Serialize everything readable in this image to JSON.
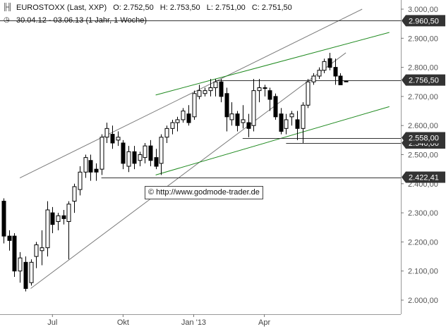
{
  "header": {
    "instrument": "EUROSTOXX (Last, XXP)",
    "open": "O: 2.752,50",
    "high": "H: 2.753,50",
    "low": "L: 2.751,00",
    "close": "C: 2.751,50",
    "period": "30.04.12 - 03.06.13 (1 Jahr, 1 Woche)"
  },
  "icons": {
    "bars": "bar-chart-icon",
    "period": "clock-icon"
  },
  "watermark": "© http://www.godmode-trader.de",
  "colors": {
    "background": "#ffffff",
    "candle": "#000000",
    "channel_lines": "#7a7a7a",
    "trend_channel": "#1f8a1f",
    "horizontal_lines": "#333333",
    "price_label_bg": "#333333",
    "price_label_text": "#ffffff"
  },
  "chart_data": {
    "type": "candlestick",
    "period": "weekly",
    "ylim": [
      1970,
      3020
    ],
    "ytick_labels": [
      "2.000,00",
      "2.100,00",
      "2.200,00",
      "2.300,00",
      "2.400,00",
      "2.500,00",
      "2.600,00",
      "2.700,00",
      "2.800,00",
      "2.900,00",
      "3.000,00"
    ],
    "yticks": [
      2000,
      2100,
      2200,
      2300,
      2400,
      2500,
      2600,
      2700,
      2800,
      2900,
      3000
    ],
    "xtick_labels": [
      {
        "label": "Jul",
        "week": 9
      },
      {
        "label": "Okt",
        "week": 22
      },
      {
        "label": "Jan '13",
        "week": 35
      },
      {
        "label": "Apr",
        "week": 48
      }
    ],
    "candles": [
      {
        "o": 2340,
        "h": 2350,
        "l": 2195,
        "c": 2220
      },
      {
        "o": 2220,
        "h": 2240,
        "l": 2170,
        "c": 2205
      },
      {
        "o": 2220,
        "h": 2230,
        "l": 2080,
        "c": 2100
      },
      {
        "o": 2100,
        "h": 2165,
        "l": 2060,
        "c": 2145
      },
      {
        "o": 2130,
        "h": 2150,
        "l": 2030,
        "c": 2040
      },
      {
        "o": 2060,
        "h": 2140,
        "l": 2050,
        "c": 2130
      },
      {
        "o": 2150,
        "h": 2200,
        "l": 2110,
        "c": 2190
      },
      {
        "o": 2170,
        "h": 2240,
        "l": 2120,
        "c": 2180
      },
      {
        "o": 2180,
        "h": 2340,
        "l": 2150,
        "c": 2310
      },
      {
        "o": 2300,
        "h": 2320,
        "l": 2230,
        "c": 2260
      },
      {
        "o": 2270,
        "h": 2300,
        "l": 2240,
        "c": 2290
      },
      {
        "o": 2290,
        "h": 2310,
        "l": 2260,
        "c": 2280
      },
      {
        "o": 2270,
        "h": 2340,
        "l": 2140,
        "c": 2330
      },
      {
        "o": 2340,
        "h": 2400,
        "l": 2300,
        "c": 2390
      },
      {
        "o": 2380,
        "h": 2460,
        "l": 2360,
        "c": 2440
      },
      {
        "o": 2440,
        "h": 2500,
        "l": 2420,
        "c": 2490
      },
      {
        "o": 2480,
        "h": 2500,
        "l": 2410,
        "c": 2440
      },
      {
        "o": 2450,
        "h": 2470,
        "l": 2410,
        "c": 2440
      },
      {
        "o": 2450,
        "h": 2570,
        "l": 2430,
        "c": 2560
      },
      {
        "o": 2560,
        "h": 2610,
        "l": 2540,
        "c": 2590
      },
      {
        "o": 2570,
        "h": 2600,
        "l": 2520,
        "c": 2540
      },
      {
        "o": 2550,
        "h": 2580,
        "l": 2530,
        "c": 2560
      },
      {
        "o": 2540,
        "h": 2550,
        "l": 2450,
        "c": 2470
      },
      {
        "o": 2460,
        "h": 2530,
        "l": 2440,
        "c": 2510
      },
      {
        "o": 2510,
        "h": 2530,
        "l": 2450,
        "c": 2470
      },
      {
        "o": 2480,
        "h": 2510,
        "l": 2460,
        "c": 2500
      },
      {
        "o": 2490,
        "h": 2540,
        "l": 2470,
        "c": 2530
      },
      {
        "o": 2530,
        "h": 2550,
        "l": 2460,
        "c": 2480
      },
      {
        "o": 2490,
        "h": 2520,
        "l": 2450,
        "c": 2460
      },
      {
        "o": 2470,
        "h": 2570,
        "l": 2430,
        "c": 2560
      },
      {
        "o": 2560,
        "h": 2600,
        "l": 2540,
        "c": 2590
      },
      {
        "o": 2590,
        "h": 2620,
        "l": 2570,
        "c": 2610
      },
      {
        "o": 2610,
        "h": 2630,
        "l": 2580,
        "c": 2620
      },
      {
        "o": 2620,
        "h": 2660,
        "l": 2610,
        "c": 2650
      },
      {
        "o": 2640,
        "h": 2670,
        "l": 2600,
        "c": 2610
      },
      {
        "o": 2630,
        "h": 2720,
        "l": 2620,
        "c": 2710
      },
      {
        "o": 2700,
        "h": 2740,
        "l": 2690,
        "c": 2720
      },
      {
        "o": 2710,
        "h": 2730,
        "l": 2700,
        "c": 2720
      },
      {
        "o": 2720,
        "h": 2760,
        "l": 2700,
        "c": 2730
      },
      {
        "o": 2730,
        "h": 2760,
        "l": 2700,
        "c": 2750
      },
      {
        "o": 2750,
        "h": 2760,
        "l": 2680,
        "c": 2700
      },
      {
        "o": 2710,
        "h": 2730,
        "l": 2580,
        "c": 2630
      },
      {
        "o": 2620,
        "h": 2680,
        "l": 2600,
        "c": 2640
      },
      {
        "o": 2640,
        "h": 2650,
        "l": 2580,
        "c": 2600
      },
      {
        "o": 2610,
        "h": 2670,
        "l": 2590,
        "c": 2620
      },
      {
        "o": 2610,
        "h": 2640,
        "l": 2560,
        "c": 2590
      },
      {
        "o": 2600,
        "h": 2760,
        "l": 2580,
        "c": 2720
      },
      {
        "o": 2720,
        "h": 2760,
        "l": 2680,
        "c": 2730
      },
      {
        "o": 2730,
        "h": 2740,
        "l": 2700,
        "c": 2730
      },
      {
        "o": 2720,
        "h": 2730,
        "l": 2650,
        "c": 2690
      },
      {
        "o": 2700,
        "h": 2710,
        "l": 2620,
        "c": 2630
      },
      {
        "o": 2640,
        "h": 2660,
        "l": 2570,
        "c": 2580
      },
      {
        "o": 2590,
        "h": 2640,
        "l": 2570,
        "c": 2620
      },
      {
        "o": 2630,
        "h": 2650,
        "l": 2600,
        "c": 2640
      },
      {
        "o": 2620,
        "h": 2650,
        "l": 2550,
        "c": 2590
      },
      {
        "o": 2590,
        "h": 2680,
        "l": 2540,
        "c": 2670
      },
      {
        "o": 2670,
        "h": 2760,
        "l": 2660,
        "c": 2750
      },
      {
        "o": 2750,
        "h": 2780,
        "l": 2740,
        "c": 2770
      },
      {
        "o": 2770,
        "h": 2800,
        "l": 2760,
        "c": 2790
      },
      {
        "o": 2790,
        "h": 2830,
        "l": 2780,
        "c": 2820
      },
      {
        "o": 2830,
        "h": 2850,
        "l": 2790,
        "c": 2800
      },
      {
        "o": 2800,
        "h": 2830,
        "l": 2740,
        "c": 2770
      },
      {
        "o": 2770,
        "h": 2780,
        "l": 2740,
        "c": 2740
      },
      {
        "o": 2752.5,
        "h": 2753.5,
        "l": 2751.0,
        "c": 2751.5
      }
    ],
    "horizontal_lines": [
      {
        "value": 2960.5,
        "label": "2.960,50",
        "from_week": -1
      },
      {
        "value": 2756.5,
        "label": "2.756,50",
        "from_week": 39
      },
      {
        "value": 2558.0,
        "label": "2.558,00",
        "from_week": 44
      },
      {
        "value": 2540.0,
        "label": "2.540,00",
        "from_week": 52
      },
      {
        "value": 2422.41,
        "label": "2.422,41",
        "from_week": 18
      }
    ],
    "trendlines": [
      {
        "kind": "channel",
        "points": [
          {
            "week": 3,
            "value": 2420
          },
          {
            "week": 66,
            "value": 3000
          }
        ]
      },
      {
        "kind": "channel",
        "points": [
          {
            "week": 5,
            "value": 2040
          },
          {
            "week": 63,
            "value": 2850
          }
        ]
      },
      {
        "kind": "trend",
        "points": [
          {
            "week": 28,
            "value": 2705
          },
          {
            "week": 71,
            "value": 2920
          }
        ]
      },
      {
        "kind": "trend",
        "points": [
          {
            "week": 28,
            "value": 2430
          },
          {
            "week": 71,
            "value": 2665
          }
        ]
      }
    ]
  }
}
